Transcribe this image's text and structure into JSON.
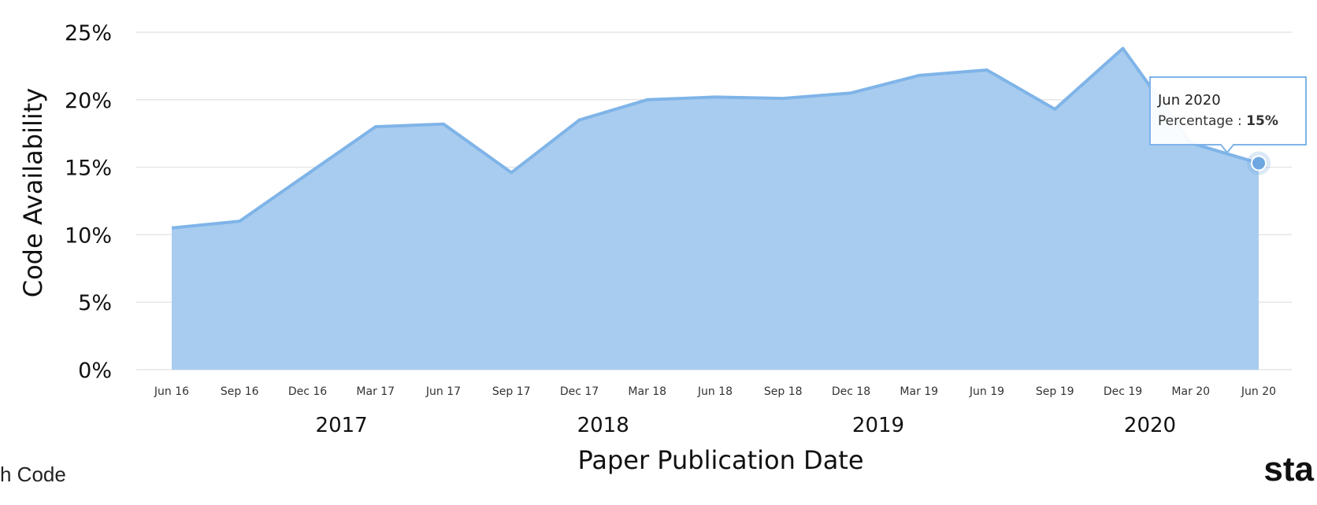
{
  "chart_data": {
    "type": "area",
    "ylabel": "Code Availability",
    "xlabel": "Paper Publication Date",
    "ylim": [
      0,
      25
    ],
    "yticks": [
      "0%",
      "5%",
      "10%",
      "15%",
      "20%",
      "25%"
    ],
    "yticks_values": [
      0,
      5,
      10,
      15,
      20,
      25
    ],
    "x": [
      "Jun 16",
      "Sep 16",
      "Dec 16",
      "Mar 17",
      "Jun 17",
      "Sep 17",
      "Dec 17",
      "Mar 18",
      "Jun 18",
      "Sep 18",
      "Dec 18",
      "Mar 19",
      "Jun 19",
      "Sep 19",
      "Dec 19",
      "Mar 20",
      "Jun 20"
    ],
    "series": [
      {
        "values": [
          10.5,
          11.0,
          14.5,
          18.0,
          18.2,
          14.6,
          18.5,
          20.0,
          20.2,
          20.1,
          20.5,
          21.8,
          22.2,
          19.3,
          23.8,
          16.8,
          15.3
        ]
      }
    ],
    "year_labels": [
      "2017",
      "2018",
      "2019",
      "2020"
    ],
    "grid": true,
    "colors": {
      "fill": "#a8ccef",
      "line": "#7fb4e8",
      "marker": "#6fa8e0",
      "grid": "#e6e6e6"
    },
    "tooltip": {
      "title": "Jun 2020",
      "label": "Percentage : ",
      "value": "15%",
      "point_index": 16
    }
  },
  "footer": {
    "left": "h Code",
    "right": "sta"
  }
}
